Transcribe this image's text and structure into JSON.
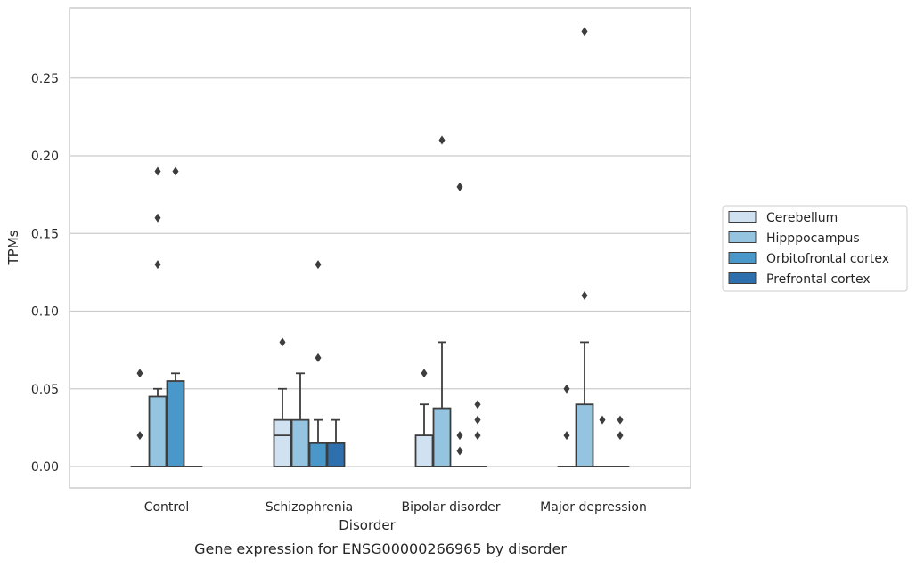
{
  "caption": "Gene expression for ENSG00000266965 by disorder",
  "chart_data": {
    "type": "box",
    "title": "",
    "xlabel": "Disorder",
    "ylabel": "TPMs",
    "ylim": [
      -0.0135,
      0.2875
    ],
    "yticks": [
      0.0,
      0.05,
      0.1,
      0.15,
      0.2,
      0.25
    ],
    "ytick_labels": [
      "0.00",
      "0.05",
      "0.10",
      "0.15",
      "0.20",
      "0.25"
    ],
    "grid": "horizontal",
    "legend_position": "right",
    "categories": [
      "Control",
      "Schizophrenia",
      "Bipolar disorder",
      "Major depression"
    ],
    "series": [
      {
        "name": "Cerebellum",
        "color": "#d0e1f2",
        "boxes": [
          {
            "q1": 0.0,
            "median": 0.0,
            "q3": 0.0,
            "whisker_low": 0.0,
            "whisker_high": 0.0,
            "outliers": [
              0.02,
              0.06
            ]
          },
          {
            "q1": 0.0,
            "median": 0.02,
            "q3": 0.03,
            "whisker_low": 0.0,
            "whisker_high": 0.05,
            "outliers": [
              0.08
            ]
          },
          {
            "q1": 0.0,
            "median": 0.0,
            "q3": 0.02,
            "whisker_low": 0.0,
            "whisker_high": 0.04,
            "outliers": [
              0.06
            ]
          },
          {
            "q1": 0.0,
            "median": 0.0,
            "q3": 0.0,
            "whisker_low": 0.0,
            "whisker_high": 0.0,
            "outliers": [
              0.02,
              0.05
            ]
          }
        ]
      },
      {
        "name": "Hipppocampus",
        "color": "#94c4df",
        "boxes": [
          {
            "q1": 0.0,
            "median": 0.0,
            "q3": 0.045,
            "whisker_low": 0.0,
            "whisker_high": 0.05,
            "outliers": [
              0.13,
              0.16,
              0.19
            ]
          },
          {
            "q1": 0.0,
            "median": 0.0,
            "q3": 0.03,
            "whisker_low": 0.0,
            "whisker_high": 0.06,
            "outliers": []
          },
          {
            "q1": 0.0,
            "median": 0.0,
            "q3": 0.0375,
            "whisker_low": 0.0,
            "whisker_high": 0.08,
            "outliers": [
              0.21
            ]
          },
          {
            "q1": 0.0,
            "median": 0.0,
            "q3": 0.04,
            "whisker_low": 0.0,
            "whisker_high": 0.08,
            "outliers": [
              0.11,
              0.28
            ]
          }
        ]
      },
      {
        "name": "Orbitofrontal cortex",
        "color": "#4a98c9",
        "boxes": [
          {
            "q1": 0.0,
            "median": 0.0,
            "q3": 0.055,
            "whisker_low": 0.0,
            "whisker_high": 0.06,
            "outliers": [
              0.19
            ]
          },
          {
            "q1": 0.0,
            "median": 0.0,
            "q3": 0.015,
            "whisker_low": 0.0,
            "whisker_high": 0.03,
            "outliers": [
              0.07,
              0.13
            ]
          },
          {
            "q1": 0.0,
            "median": 0.0,
            "q3": 0.0,
            "whisker_low": 0.0,
            "whisker_high": 0.0,
            "outliers": [
              0.01,
              0.02,
              0.18
            ]
          },
          {
            "q1": 0.0,
            "median": 0.0,
            "q3": 0.0,
            "whisker_low": 0.0,
            "whisker_high": 0.0,
            "outliers": [
              0.03
            ]
          }
        ]
      },
      {
        "name": "Prefrontal cortex",
        "color": "#2e6fad",
        "boxes": [
          {
            "q1": 0.0,
            "median": 0.0,
            "q3": 0.0,
            "whisker_low": 0.0,
            "whisker_high": 0.0,
            "outliers": []
          },
          {
            "q1": 0.0,
            "median": 0.0,
            "q3": 0.015,
            "whisker_low": 0.0,
            "whisker_high": 0.03,
            "outliers": []
          },
          {
            "q1": 0.0,
            "median": 0.0,
            "q3": 0.0,
            "whisker_low": 0.0,
            "whisker_high": 0.0,
            "outliers": [
              0.02,
              0.03,
              0.04
            ]
          },
          {
            "q1": 0.0,
            "median": 0.0,
            "q3": 0.0,
            "whisker_low": 0.0,
            "whisker_high": 0.0,
            "outliers": [
              0.02,
              0.03
            ]
          }
        ]
      }
    ],
    "style": {
      "edge_color": "#3d3d3d",
      "grid_color": "#cccccc",
      "frame_color": "#cccccc"
    }
  }
}
